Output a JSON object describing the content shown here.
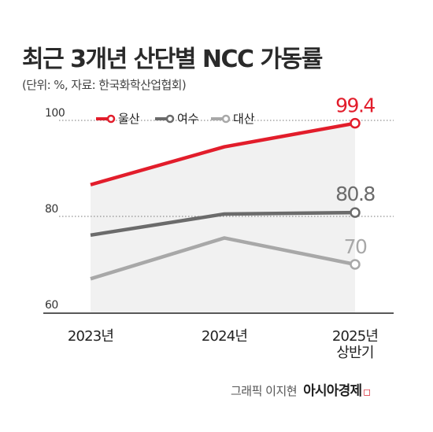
{
  "header": {
    "title": "최근 3개년 산단별 NCC 가동률",
    "subtitle": "(단위: %, 자료: 한국화학산업협회)"
  },
  "footer": {
    "credit": "그래픽 이지현",
    "brand": "아시아경제",
    "brand_mark": "◻"
  },
  "colors": {
    "ulsan": "#e21d2b",
    "yeosu": "#6b6b6b",
    "daesan": "#a8a8a8",
    "area": "#f1f1f1",
    "grid": "#777777"
  },
  "chart_data": {
    "type": "line",
    "x": [
      "2023년",
      "2024년",
      "2025년 상반기"
    ],
    "series": [
      {
        "name": "울산",
        "values": [
          86.6,
          94.5,
          99.4
        ],
        "end_label": "99.4"
      },
      {
        "name": "여수",
        "values": [
          76.1,
          80.5,
          80.8
        ],
        "end_label": "80.8"
      },
      {
        "name": "대산",
        "values": [
          67.0,
          75.5,
          70.0
        ],
        "end_label": "70"
      }
    ],
    "yticks": [
      "100",
      "80",
      "60"
    ],
    "ylim": [
      60,
      100
    ],
    "grid": true,
    "legend": "top-left"
  }
}
